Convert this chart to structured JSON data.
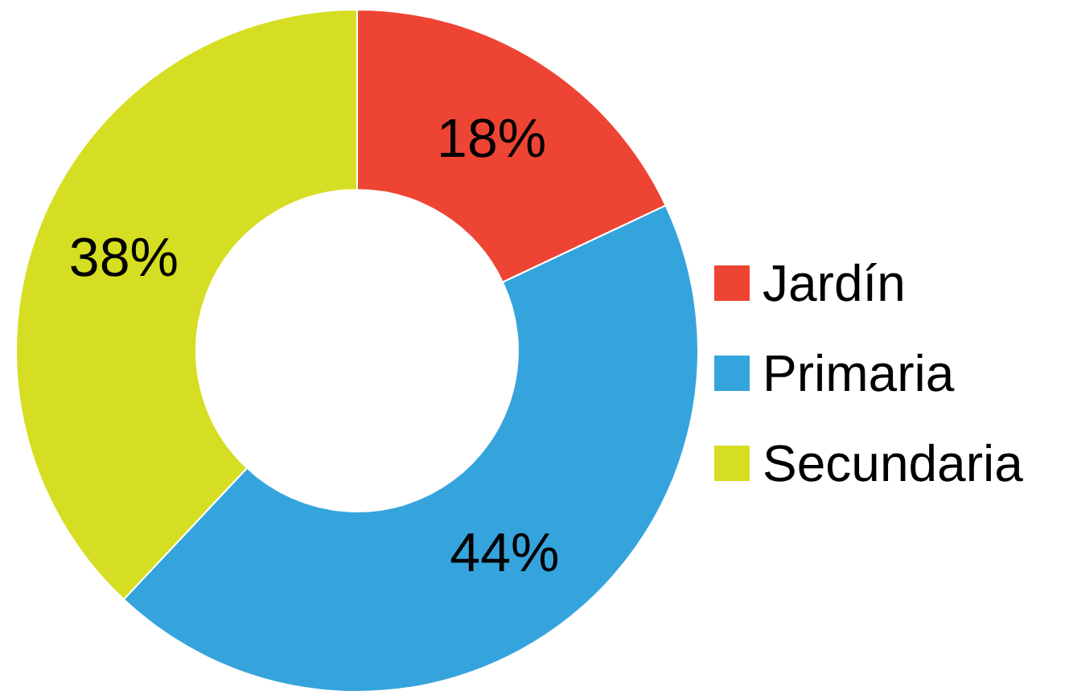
{
  "chart_data": {
    "type": "donut",
    "categories": [
      "Jardín",
      "Primaria",
      "Secundaria"
    ],
    "values": [
      18,
      44,
      38
    ],
    "colors": [
      "#ee4433",
      "#35a4dc",
      "#d5de22"
    ],
    "value_labels": [
      "18%",
      "44%",
      "38%"
    ],
    "legend": "right"
  }
}
